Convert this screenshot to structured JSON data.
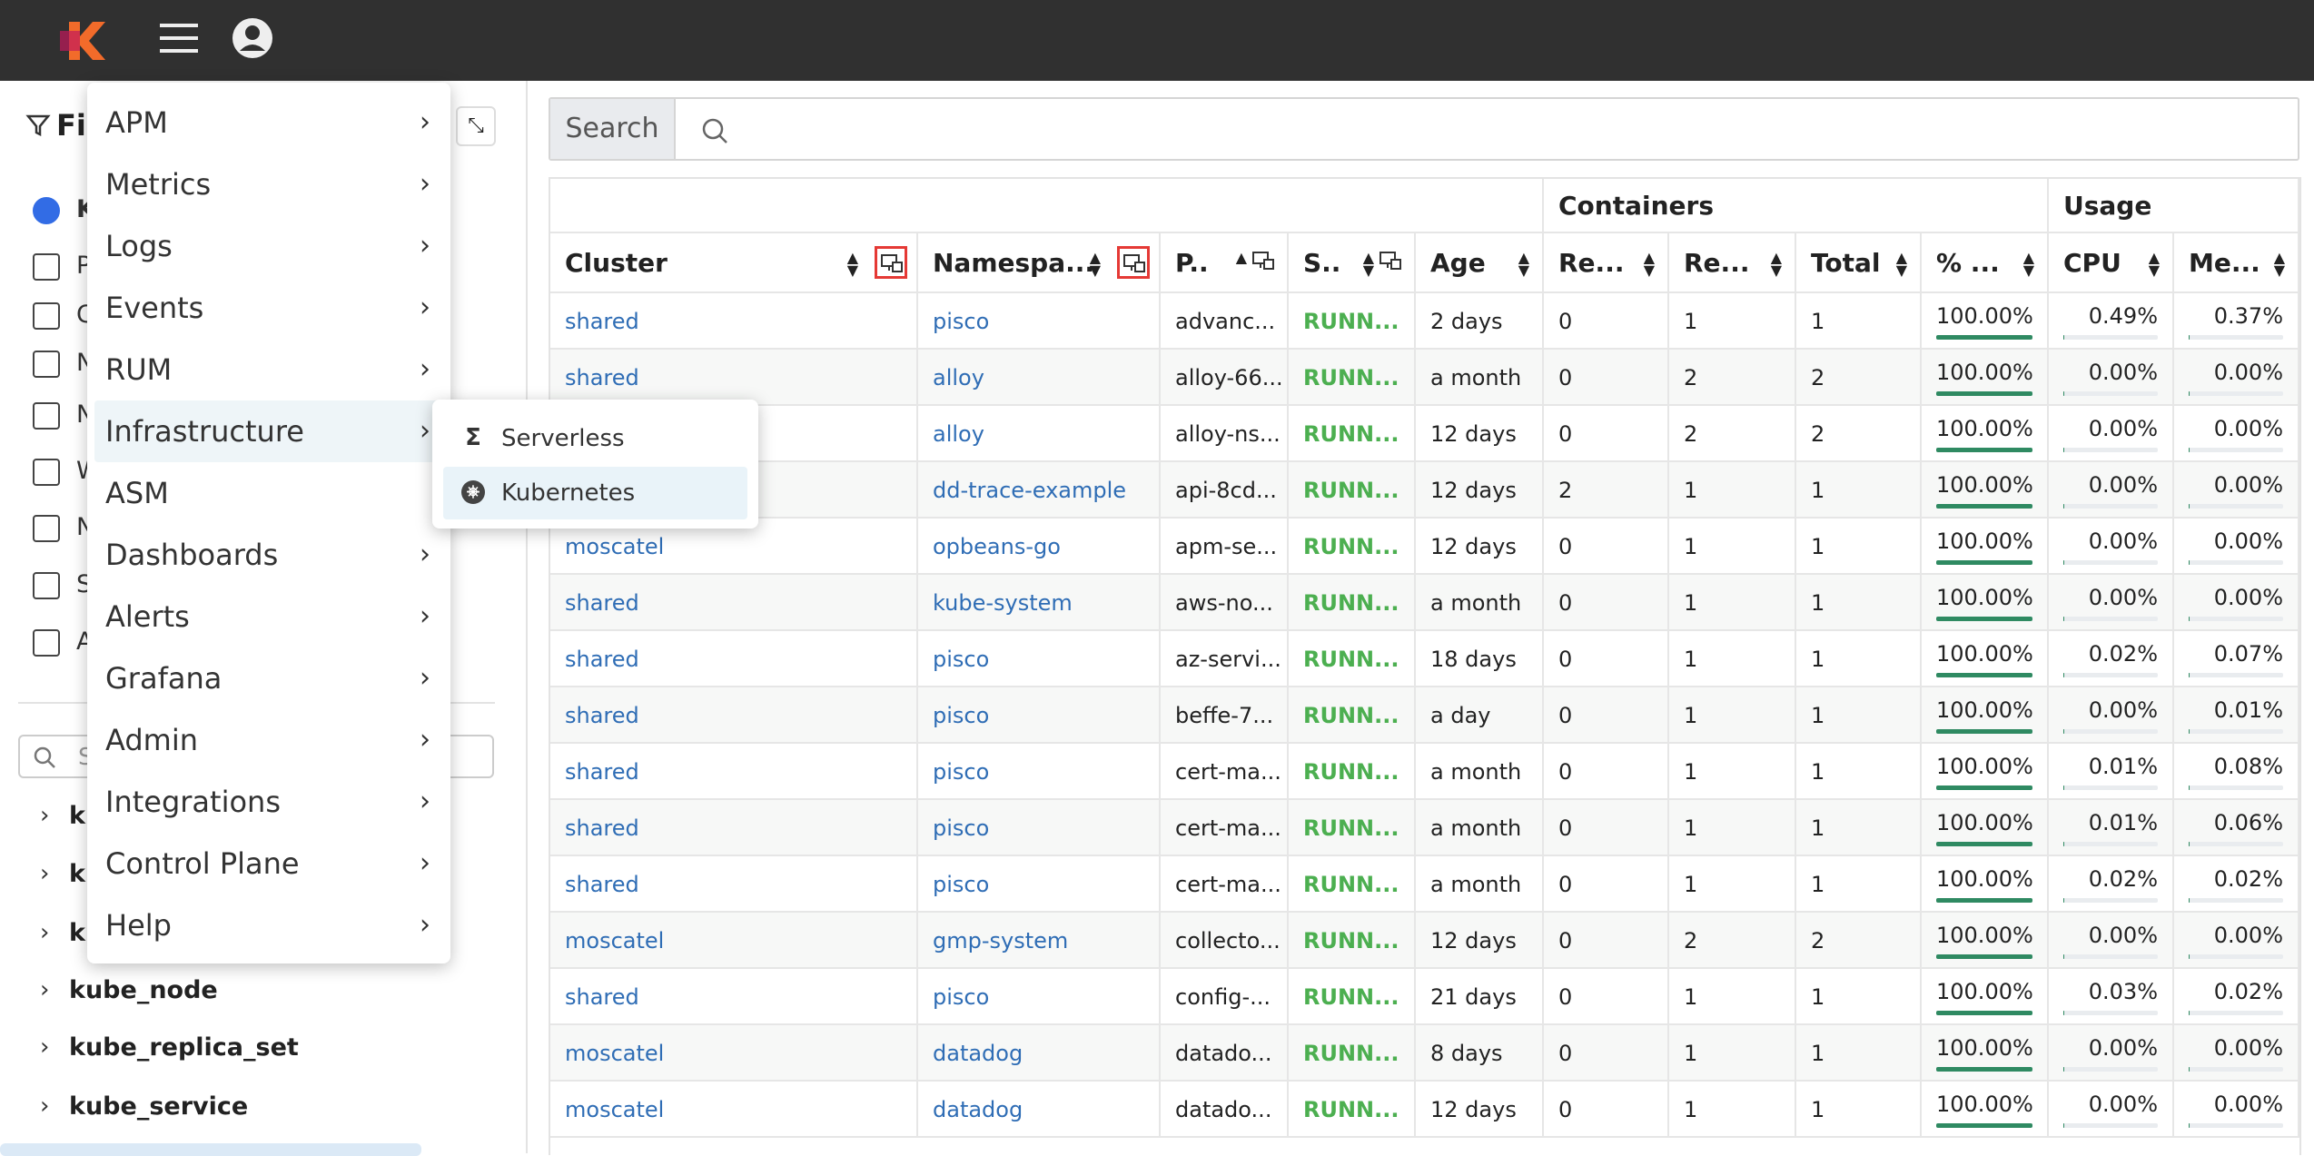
{
  "sidebar": {
    "filter_title": "Fil",
    "letters": [
      "K",
      "P",
      "C",
      "N",
      "N",
      "W",
      "N",
      "S",
      "A"
    ],
    "search_placeholder": "S",
    "tree": [
      "ku",
      "ku",
      "ku",
      "kube_node",
      "kube_replica_set",
      "kube_service"
    ]
  },
  "search": {
    "label": "Search"
  },
  "menu": {
    "items": [
      {
        "label": "APM",
        "arrow": true
      },
      {
        "label": "Metrics",
        "arrow": true
      },
      {
        "label": "Logs",
        "arrow": true
      },
      {
        "label": "Events",
        "arrow": true
      },
      {
        "label": "RUM",
        "arrow": true
      },
      {
        "label": "Infrastructure",
        "arrow": true
      },
      {
        "label": "ASM",
        "arrow": false
      },
      {
        "label": "Dashboards",
        "arrow": true
      },
      {
        "label": "Alerts",
        "arrow": true
      },
      {
        "label": "Grafana",
        "arrow": true
      },
      {
        "label": "Admin",
        "arrow": true
      },
      {
        "label": "Integrations",
        "arrow": true
      },
      {
        "label": "Control Plane",
        "arrow": true
      },
      {
        "label": "Help",
        "arrow": true
      }
    ],
    "active": 5
  },
  "submenu": {
    "items": [
      "Serverless",
      "Kubernetes"
    ],
    "active": 1
  },
  "table": {
    "group_headers": [
      "Containers",
      "Usage"
    ],
    "columns": [
      "Cluster",
      "Namespa...",
      "P..",
      "S..",
      "Age",
      "Re...",
      "Re...",
      "Total",
      "% ...",
      "CPU",
      "Me..."
    ],
    "rows": [
      [
        "shared",
        "pisco",
        "advanc...",
        "RUNN...",
        "2 days",
        "0",
        "1",
        "1",
        "100.00%",
        "0.49%",
        "0.37%"
      ],
      [
        "shared",
        "alloy",
        "alloy-66...",
        "RUNN...",
        "a month",
        "0",
        "2",
        "2",
        "100.00%",
        "0.00%",
        "0.00%"
      ],
      [
        null,
        "alloy",
        "alloy-ns...",
        "RUNN...",
        "12 days",
        "0",
        "2",
        "2",
        "100.00%",
        "0.00%",
        "0.00%"
      ],
      [
        null,
        "dd-trace-example",
        "api-8cd...",
        "RUNN...",
        "12 days",
        "2",
        "1",
        "1",
        "100.00%",
        "0.00%",
        "0.00%"
      ],
      [
        "moscatel",
        "opbeans-go",
        "apm-se...",
        "RUNN...",
        "12 days",
        "0",
        "1",
        "1",
        "100.00%",
        "0.00%",
        "0.00%"
      ],
      [
        "shared",
        "kube-system",
        "aws-no...",
        "RUNN...",
        "a month",
        "0",
        "1",
        "1",
        "100.00%",
        "0.00%",
        "0.00%"
      ],
      [
        "shared",
        "pisco",
        "az-servi...",
        "RUNN...",
        "18 days",
        "0",
        "1",
        "1",
        "100.00%",
        "0.02%",
        "0.07%"
      ],
      [
        "shared",
        "pisco",
        "beffe-7...",
        "RUNN...",
        "a day",
        "0",
        "1",
        "1",
        "100.00%",
        "0.00%",
        "0.01%"
      ],
      [
        "shared",
        "pisco",
        "cert-ma...",
        "RUNN...",
        "a month",
        "0",
        "1",
        "1",
        "100.00%",
        "0.01%",
        "0.08%"
      ],
      [
        "shared",
        "pisco",
        "cert-ma...",
        "RUNN...",
        "a month",
        "0",
        "1",
        "1",
        "100.00%",
        "0.01%",
        "0.06%"
      ],
      [
        "shared",
        "pisco",
        "cert-ma...",
        "RUNN...",
        "a month",
        "0",
        "1",
        "1",
        "100.00%",
        "0.02%",
        "0.02%"
      ],
      [
        "moscatel",
        "gmp-system",
        "collecto...",
        "RUNN...",
        "12 days",
        "0",
        "2",
        "2",
        "100.00%",
        "0.00%",
        "0.00%"
      ],
      [
        "shared",
        "pisco",
        "config-...",
        "RUNN...",
        "21 days",
        "0",
        "1",
        "1",
        "100.00%",
        "0.03%",
        "0.02%"
      ],
      [
        "moscatel",
        "datadog",
        "datado...",
        "RUNN...",
        "8 days",
        "0",
        "1",
        "1",
        "100.00%",
        "0.00%",
        "0.00%"
      ],
      [
        "moscatel",
        "datadog",
        "datado...",
        "RUNN...",
        "12 days",
        "0",
        "1",
        "1",
        "100.00%",
        "0.00%",
        "0.00%"
      ]
    ]
  }
}
